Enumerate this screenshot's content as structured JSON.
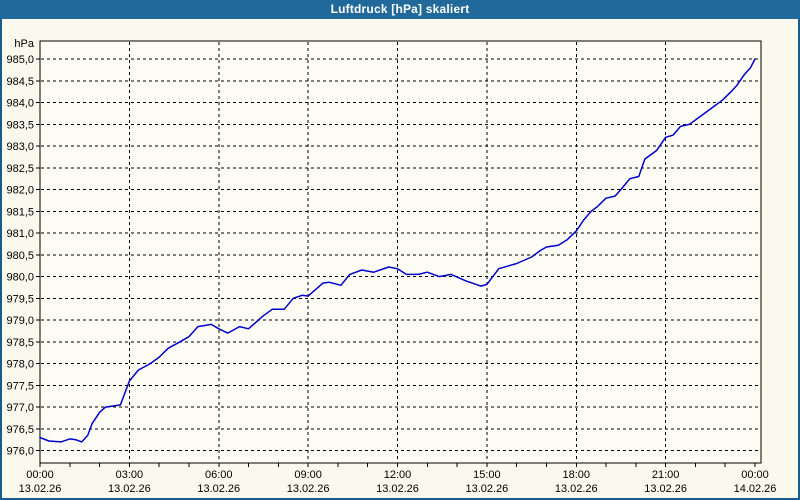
{
  "window": {
    "title": "Luftdruck [hPa] skaliert"
  },
  "colors": {
    "titlebar": "#20699a",
    "window_border": "#1a5a8c",
    "background": "#f9f9ee",
    "plot_background": "#fdfdf6",
    "grid": "#000000",
    "axis": "#000000",
    "text": "#000000",
    "title_text": "#ffffff",
    "curve": "#0000cc"
  },
  "chart_data": {
    "type": "line",
    "title": "Luftdruck [hPa] skaliert",
    "ylabel": "hPa",
    "xlabel": "",
    "grid": "dashed",
    "legend": "none",
    "y_axis": {
      "min": 976.0,
      "max": 985.0,
      "step": 0.5,
      "unit": "hPa",
      "decimal_separator": ","
    },
    "x_axis": {
      "minor_tick_hours": 1,
      "major_tick_hours": 3,
      "ticks": [
        {
          "hour": 0,
          "time": "00:00",
          "date": "13.02.26"
        },
        {
          "hour": 3,
          "time": "03:00",
          "date": "13.02.26"
        },
        {
          "hour": 6,
          "time": "06:00",
          "date": "13.02.26"
        },
        {
          "hour": 9,
          "time": "09:00",
          "date": "13.02.26"
        },
        {
          "hour": 12,
          "time": "12:00",
          "date": "13.02.26"
        },
        {
          "hour": 15,
          "time": "15:00",
          "date": "13.02.26"
        },
        {
          "hour": 18,
          "time": "18:00",
          "date": "13.02.26"
        },
        {
          "hour": 21,
          "time": "21:00",
          "date": "13.02.26"
        },
        {
          "hour": 24,
          "time": "00:00",
          "date": "14.02.26"
        }
      ]
    },
    "series": [
      {
        "name": "Luftdruck",
        "unit": "hPa",
        "points_hour_value": [
          [
            0.0,
            976.3
          ],
          [
            0.3,
            976.22
          ],
          [
            0.7,
            976.2
          ],
          [
            1.0,
            976.27
          ],
          [
            1.2,
            976.25
          ],
          [
            1.4,
            976.2
          ],
          [
            1.6,
            976.35
          ],
          [
            1.75,
            976.62
          ],
          [
            2.0,
            976.88
          ],
          [
            2.2,
            977.0
          ],
          [
            2.7,
            977.05
          ],
          [
            3.0,
            977.6
          ],
          [
            3.3,
            977.85
          ],
          [
            3.7,
            978.0
          ],
          [
            4.0,
            978.15
          ],
          [
            4.3,
            978.35
          ],
          [
            4.7,
            978.5
          ],
          [
            5.0,
            978.62
          ],
          [
            5.3,
            978.85
          ],
          [
            5.75,
            978.9
          ],
          [
            6.0,
            978.8
          ],
          [
            6.3,
            978.7
          ],
          [
            6.7,
            978.85
          ],
          [
            7.0,
            978.8
          ],
          [
            7.5,
            979.1
          ],
          [
            7.8,
            979.25
          ],
          [
            8.2,
            979.25
          ],
          [
            8.5,
            979.5
          ],
          [
            8.8,
            979.57
          ],
          [
            9.0,
            979.55
          ],
          [
            9.5,
            979.85
          ],
          [
            9.7,
            979.87
          ],
          [
            10.1,
            979.8
          ],
          [
            10.4,
            980.05
          ],
          [
            10.8,
            980.15
          ],
          [
            11.2,
            980.1
          ],
          [
            11.7,
            980.22
          ],
          [
            12.0,
            980.18
          ],
          [
            12.3,
            980.05
          ],
          [
            12.7,
            980.05
          ],
          [
            13.0,
            980.1
          ],
          [
            13.4,
            980.0
          ],
          [
            13.8,
            980.05
          ],
          [
            14.3,
            979.9
          ],
          [
            14.8,
            979.78
          ],
          [
            15.0,
            979.82
          ],
          [
            15.4,
            980.18
          ],
          [
            16.0,
            980.3
          ],
          [
            16.5,
            980.45
          ],
          [
            16.8,
            980.6
          ],
          [
            17.0,
            980.68
          ],
          [
            17.4,
            980.72
          ],
          [
            17.7,
            980.85
          ],
          [
            18.0,
            981.05
          ],
          [
            18.25,
            981.3
          ],
          [
            18.5,
            981.5
          ],
          [
            18.7,
            981.6
          ],
          [
            19.0,
            981.8
          ],
          [
            19.3,
            981.85
          ],
          [
            19.5,
            982.0
          ],
          [
            19.8,
            982.25
          ],
          [
            20.1,
            982.3
          ],
          [
            20.3,
            982.7
          ],
          [
            20.7,
            982.9
          ],
          [
            21.0,
            983.2
          ],
          [
            21.25,
            983.25
          ],
          [
            21.5,
            983.45
          ],
          [
            21.8,
            983.5
          ],
          [
            22.2,
            983.7
          ],
          [
            22.6,
            983.9
          ],
          [
            22.9,
            984.05
          ],
          [
            23.2,
            984.25
          ],
          [
            23.4,
            984.4
          ],
          [
            23.65,
            984.65
          ],
          [
            23.85,
            984.8
          ],
          [
            24.0,
            985.0
          ]
        ]
      }
    ]
  }
}
